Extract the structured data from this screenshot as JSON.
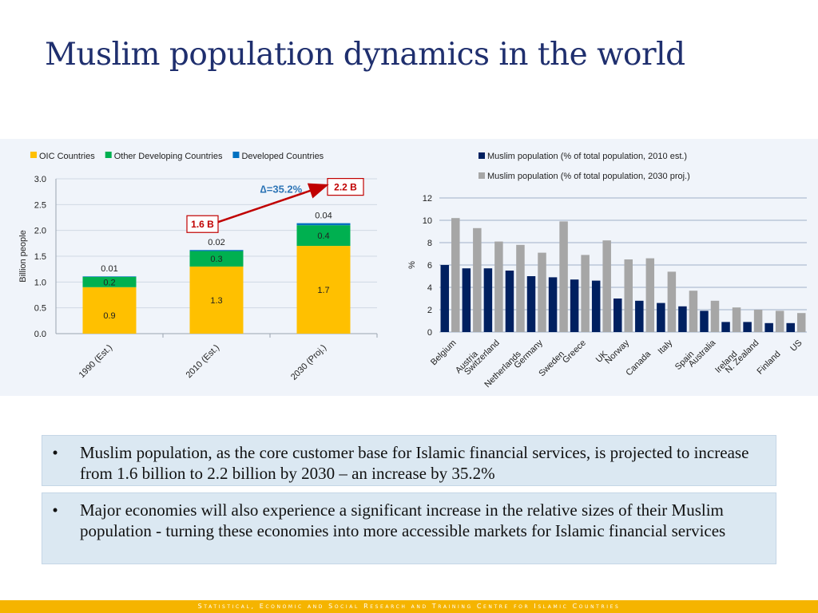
{
  "title": "Muslim population dynamics in the world",
  "chart_data": [
    {
      "type": "bar",
      "stacked": true,
      "categories": [
        "1990 (Est.)",
        "2010 (Est.)",
        "2030 (Proj.)"
      ],
      "series": [
        {
          "name": "OIC Countries",
          "values": [
            0.9,
            1.3,
            1.7
          ],
          "labels": [
            "0.9",
            "1.3",
            "1.7"
          ],
          "color": "#ffc000"
        },
        {
          "name": "Other Developing Countries",
          "values": [
            0.2,
            0.3,
            0.4
          ],
          "labels": [
            "0.2",
            "0.3",
            "0.4"
          ],
          "color": "#00b050"
        },
        {
          "name": "Developed Countries",
          "values": [
            0.01,
            0.02,
            0.04
          ],
          "labels": [
            "0.01",
            "0.02",
            "0.04"
          ],
          "color": "#0070c0"
        }
      ],
      "ylabel": "Billion people",
      "ylim": [
        0,
        3
      ],
      "yticks": [
        "0.0",
        "0.5",
        "1.0",
        "1.5",
        "2.0",
        "2.5",
        "3.0"
      ],
      "grid": true,
      "legend": "top",
      "annotations": {
        "callout_2010": "1.6 B",
        "callout_2030": "2.2 B",
        "delta_sym": "∆",
        "delta_val": "=35.2%"
      }
    },
    {
      "type": "bar",
      "categories": [
        "Belgium",
        "Austria",
        "Switzerland",
        "Netherlands",
        "Germany",
        "Sweden",
        "Greece",
        "UK",
        "Norway",
        "Canada",
        "Italy",
        "Spain",
        "Australia",
        "Ireland",
        "N. Zealand",
        "Finland",
        "US"
      ],
      "series": [
        {
          "name": "Muslim population (% of total population, 2010 est.)",
          "values": [
            6,
            5.7,
            5.7,
            5.5,
            5,
            4.9,
            4.7,
            4.6,
            3,
            2.8,
            2.6,
            2.3,
            1.9,
            0.9,
            0.9,
            0.8,
            0.8
          ],
          "color": "#002060"
        },
        {
          "name": "Muslim population (% of total population, 2030 proj.)",
          "values": [
            10.2,
            9.3,
            8.1,
            7.8,
            7.1,
            9.9,
            6.9,
            8.2,
            6.5,
            6.6,
            5.4,
            3.7,
            2.8,
            2.2,
            2,
            1.9,
            1.7
          ],
          "color": "#a6a6a6"
        }
      ],
      "ylabel": "%",
      "ylim": [
        0,
        12
      ],
      "yticks": [
        "0",
        "2",
        "4",
        "6",
        "8",
        "10",
        "12"
      ],
      "grid": true,
      "legend": "top"
    }
  ],
  "bullets": [
    {
      "mark": "•",
      "text": "Muslim population, as the core customer base for Islamic financial services, is projected to increase from 1.6 billion to 2.2 billion by 2030 – an increase by 35.2%"
    },
    {
      "mark": "•",
      "text": "Major economies will also experience a significant increase in the relative sizes of their Muslim population  - turning these economies into more accessible markets for Islamic financial services"
    }
  ],
  "footer": "Statistical, Economic and Social Research and Training Centre for Islamic Countries"
}
